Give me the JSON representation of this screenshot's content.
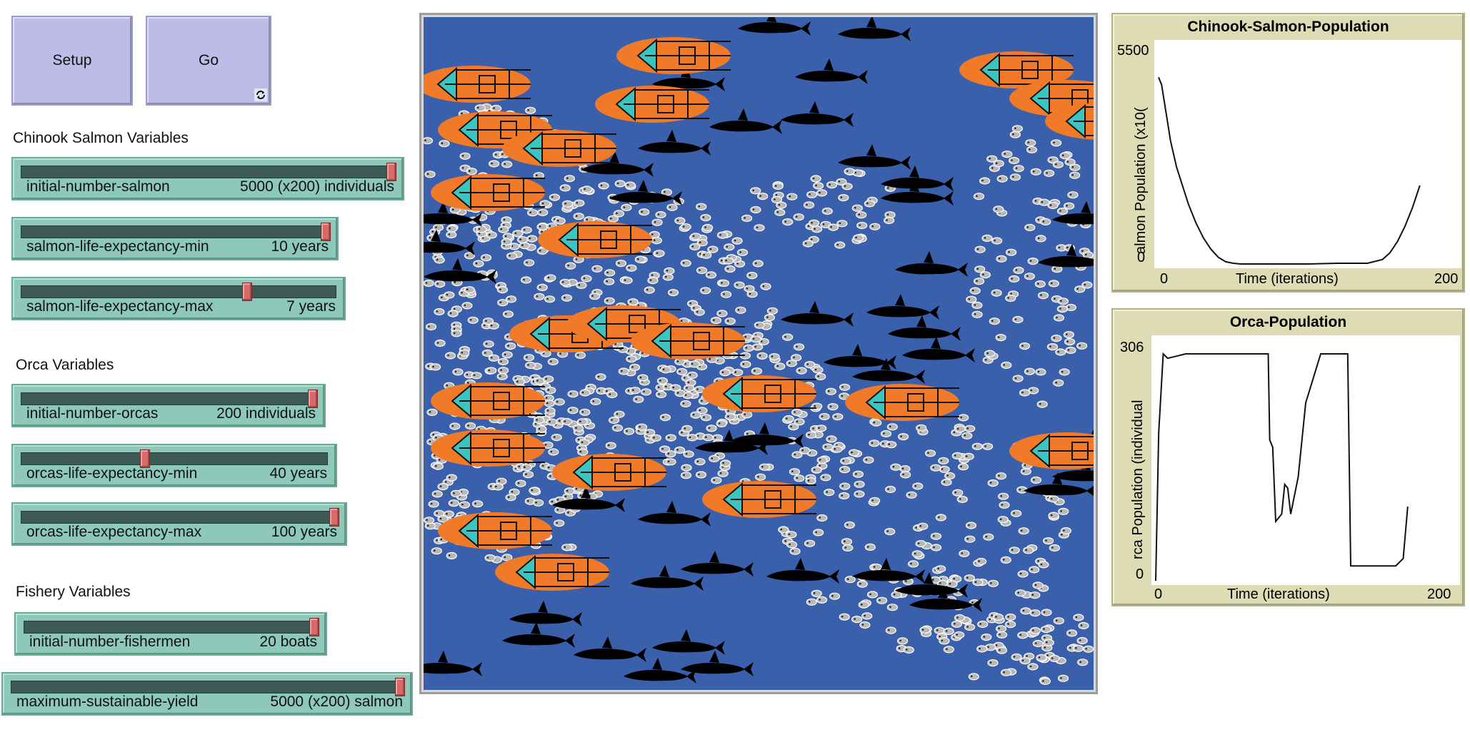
{
  "buttons": {
    "setup": "Setup",
    "go": "Go"
  },
  "sections": {
    "salmon": "Chinook Salmon Variables",
    "orca": "Orca Variables",
    "fishery": "Fishery Variables"
  },
  "sliders": [
    {
      "label": "initial-number-salmon",
      "value": "5000 (x200) individuals",
      "fraction": 1.0
    },
    {
      "label": "salmon-life-expectancy-min",
      "value": "10 years",
      "fraction": 1.0
    },
    {
      "label": "salmon-life-expectancy-max",
      "value": "7 years",
      "fraction": 0.72
    },
    {
      "label": "initial-number-orcas",
      "value": "200 individuals",
      "fraction": 1.0
    },
    {
      "label": "orcas-life-expectancy-min",
      "value": "40 years",
      "fraction": 0.4
    },
    {
      "label": "orcas-life-expectancy-max",
      "value": "100 years",
      "fraction": 1.0
    },
    {
      "label": "initial-number-fishermen",
      "value": "20 boats",
      "fraction": 1.0
    },
    {
      "label": "maximum-sustainable-yield",
      "value": "5000 (x200) salmon",
      "fraction": 1.0
    }
  ],
  "colors": {
    "ocean": "#3a5fab",
    "boat": "#f07a28",
    "boat_bow": "#3cc4c0",
    "orca": "#000000",
    "salmon": "#b8b8b8"
  },
  "chart_data": [
    {
      "type": "line",
      "title": "Chinook-Salmon-Population",
      "xlabel": "Time (iterations)",
      "ylabel": "almon Population (x10(",
      "xlim": [
        0,
        200
      ],
      "ylim": [
        0,
        5500
      ],
      "x_ticks": [
        "0",
        "200"
      ],
      "y_ticks": [
        "0",
        "5500"
      ],
      "series": [
        {
          "x": [
            0,
            2,
            4,
            8,
            12,
            16,
            20,
            25,
            30,
            35,
            40,
            45,
            50,
            55,
            60,
            70,
            80,
            100,
            120,
            140,
            150,
            155,
            160,
            165,
            170,
            175
          ],
          "y": [
            5000,
            4800,
            4300,
            3300,
            2600,
            2100,
            1600,
            1100,
            700,
            400,
            180,
            60,
            20,
            0,
            0,
            0,
            0,
            0,
            20,
            20,
            120,
            300,
            600,
            1000,
            1500,
            2100
          ]
        }
      ]
    },
    {
      "type": "line",
      "title": "Orca-Population",
      "xlabel": "Time (iterations)",
      "ylabel": "rca Population (individual",
      "xlim": [
        0,
        200
      ],
      "ylim": [
        0,
        306
      ],
      "x_ticks": [
        "0",
        "200"
      ],
      "y_ticks": [
        "0",
        "306"
      ],
      "series": [
        {
          "x": [
            0,
            2,
            5,
            8,
            20,
            60,
            70,
            75,
            76,
            78,
            80,
            84,
            86,
            88,
            90,
            95,
            100,
            110,
            120,
            128,
            130,
            135,
            140,
            150,
            160,
            165,
            168
          ],
          "y": [
            0,
            200,
            306,
            300,
            306,
            306,
            306,
            306,
            190,
            180,
            80,
            90,
            130,
            125,
            90,
            140,
            240,
            306,
            306,
            306,
            20,
            20,
            20,
            20,
            20,
            30,
            100
          ]
        }
      ]
    }
  ]
}
